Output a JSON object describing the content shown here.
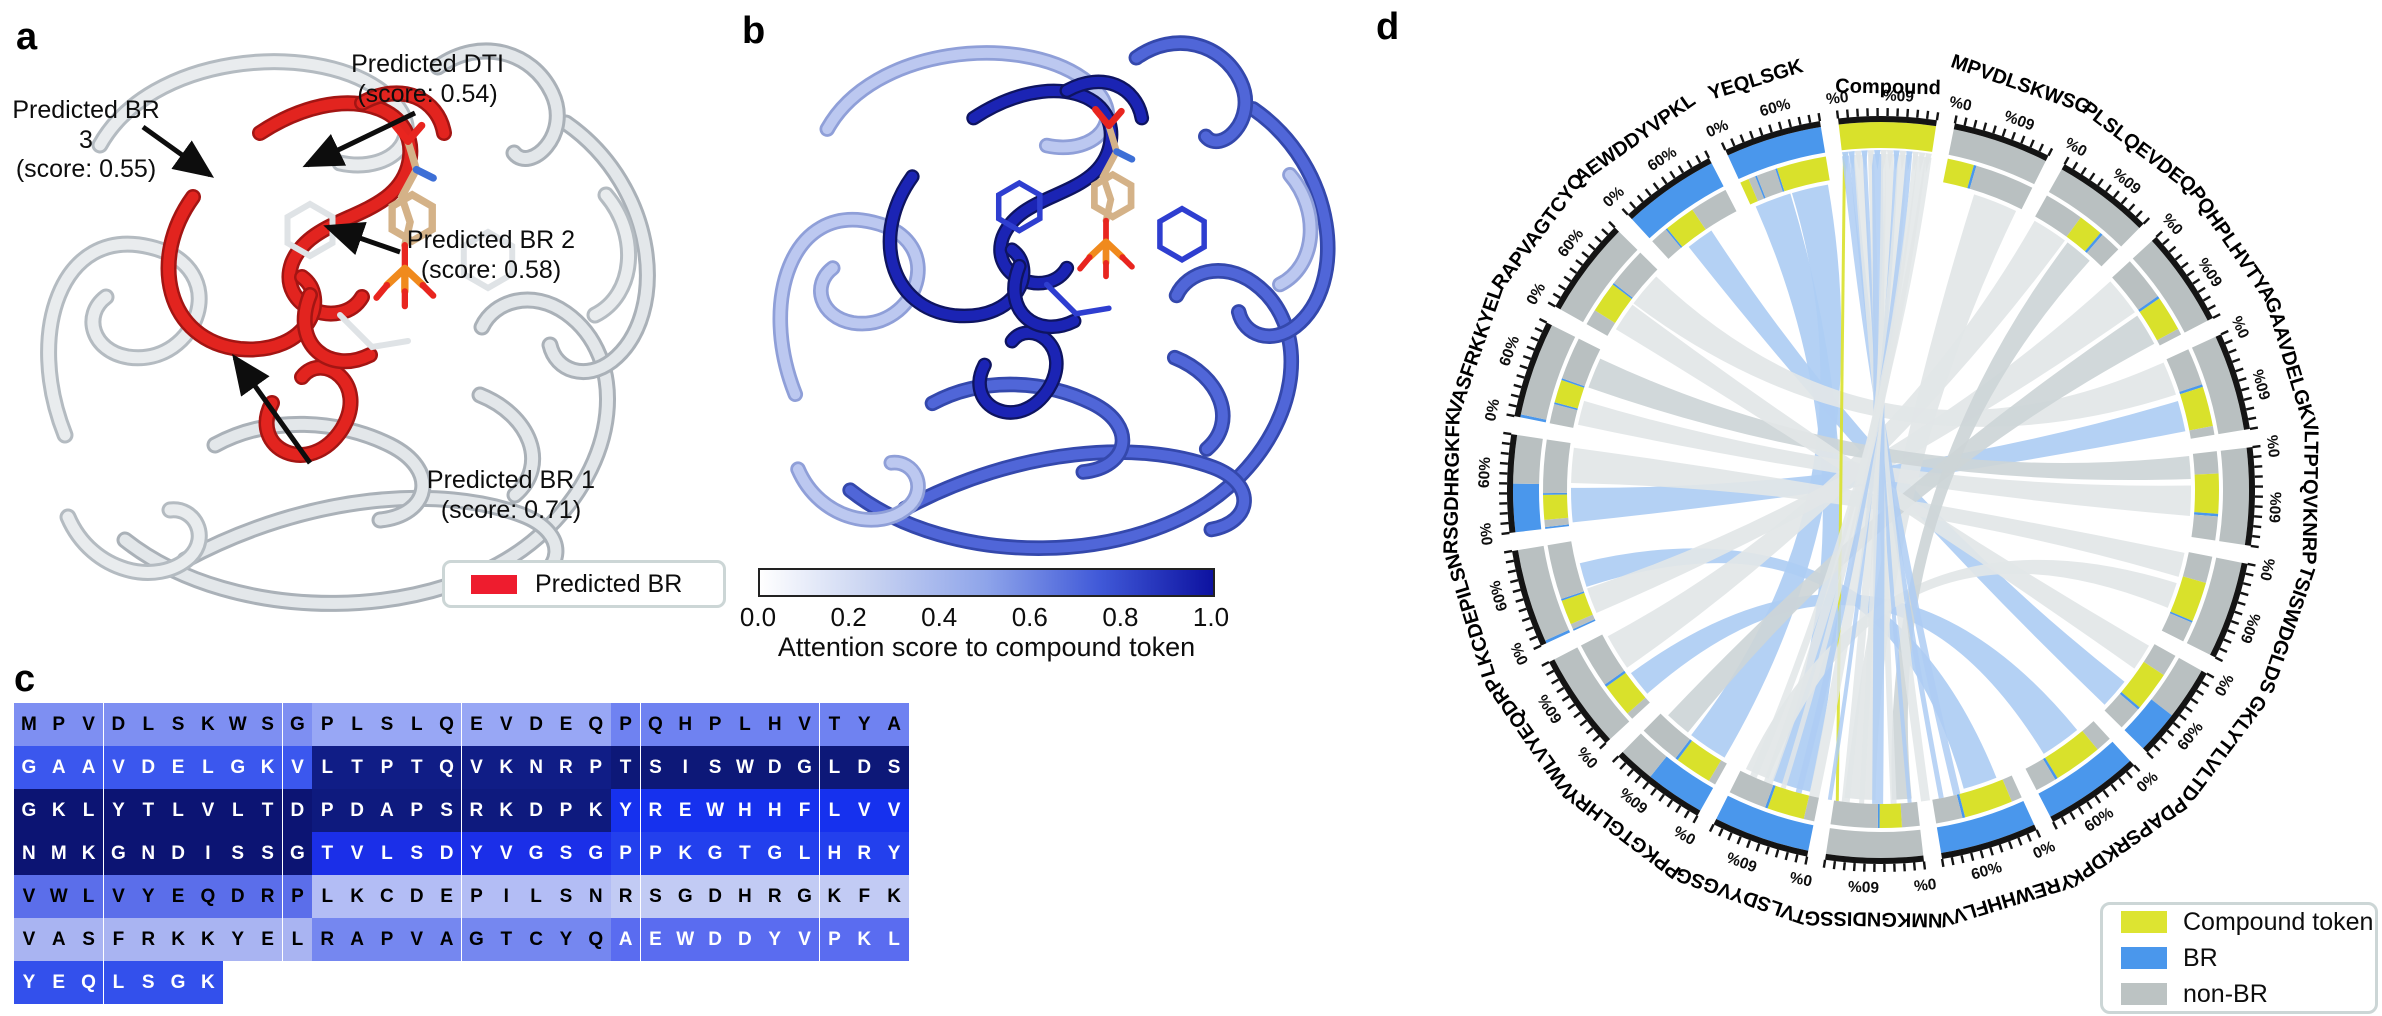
{
  "panel_a": {
    "label": "a",
    "annotations": [
      {
        "name": "predicted-br-3",
        "line1": "Predicted BR 3",
        "line2": "(score: 0.55)"
      },
      {
        "name": "predicted-dti",
        "line1": "Predicted DTI",
        "line2": "(score: 0.54)"
      },
      {
        "name": "predicted-br-2",
        "line1": "Predicted BR 2",
        "line2": "(score: 0.58)"
      },
      {
        "name": "predicted-br-1",
        "line1": "Predicted BR 1",
        "line2": "(score: 0.71)"
      }
    ],
    "legend": {
      "label": "Predicted BR",
      "color": "#ee1c2e"
    }
  },
  "panel_b": {
    "label": "b",
    "colorbar": {
      "ticks": [
        "0.0",
        "0.2",
        "0.4",
        "0.6",
        "0.8",
        "1.0"
      ],
      "title": "Attention score to compound token",
      "gradient": [
        "#ffffff",
        "#c7d2f1",
        "#8ea4ea",
        "#4059d8",
        "#0d12a0"
      ]
    }
  },
  "panel_c": {
    "label": "c",
    "rows": [
      {
        "segments": [
          {
            "seq": "MPVDLSKWSG",
            "bg": "#7e8ff2",
            "fg": "#000000"
          },
          {
            "seq": "PLSLQEVDEQ",
            "bg": "#98a7f5",
            "fg": "#000000"
          },
          {
            "seq": "PQHPLHVTYA",
            "bg": "#6f82f1",
            "fg": "#000000"
          }
        ]
      },
      {
        "segments": [
          {
            "seq": "GAAVDELGKV",
            "bg": "#3b57ee",
            "fg": "#ffffff"
          },
          {
            "seq": "LTPTQVKNRP",
            "bg": "#101d86",
            "fg": "#ffffff"
          },
          {
            "seq": "TSISWDGLDS",
            "bg": "#0d1878",
            "fg": "#ffffff"
          }
        ]
      },
      {
        "segments": [
          {
            "seq": "GKLYTLVLTD",
            "bg": "#0c1473",
            "fg": "#ffffff"
          },
          {
            "seq": "PDAPSRKDPK",
            "bg": "#0e1a7e",
            "fg": "#ffffff"
          },
          {
            "seq": "YREWHHFLVV",
            "bg": "#1631ee",
            "fg": "#ffffff"
          }
        ]
      },
      {
        "segments": [
          {
            "seq": "NMKGNDISSG",
            "bg": "#0c1473",
            "fg": "#ffffff"
          },
          {
            "seq": "TVLSDYVGSG",
            "bg": "#1b2fe8",
            "fg": "#ffffff"
          },
          {
            "seq": "PPKGTGLHRY",
            "bg": "#2340ed",
            "fg": "#ffffff"
          }
        ]
      },
      {
        "segments": [
          {
            "seq": "VWLVYEQDRP",
            "bg": "#5b6eea",
            "fg": "#000000"
          },
          {
            "seq": "LKCDEPILSN",
            "bg": "#b3bdf5",
            "fg": "#000000"
          },
          {
            "seq": "RSGDHRGKFK",
            "bg": "#c2cbf4",
            "fg": "#000000"
          }
        ]
      },
      {
        "segments": [
          {
            "seq": "VASFRKKYEL",
            "bg": "#a9b4f2",
            "fg": "#000000"
          },
          {
            "seq": "RAPVAGTCYQ",
            "bg": "#7587f0",
            "fg": "#000000"
          },
          {
            "seq": "AEWDDYVPKL",
            "bg": "#5a6cf0",
            "fg": "#ffffff"
          }
        ]
      },
      {
        "segments": [
          {
            "seq": "YEQLSGK",
            "bg": "#3350ec",
            "fg": "#ffffff"
          }
        ]
      }
    ]
  },
  "panel_d": {
    "label": "d",
    "tick_labels": [
      "0%",
      "60%"
    ],
    "colors": {
      "compound": "#d9e12b",
      "br": "#4a97ec",
      "nonbr": "#b9c0c1",
      "ribbon_blue": "#aecdf3",
      "ribbon_gray": "#e2e6e7",
      "ribbon_gray2": "#cdd5d7",
      "axis": "#141414"
    },
    "sectors": [
      {
        "name": "Compound",
        "outer": [
          [
            "y",
            1.0
          ]
        ],
        "inner": []
      },
      {
        "name": "MPVDLSKWSG",
        "outer": [
          [
            "g",
            1.0
          ]
        ],
        "inner": [
          [
            "y",
            0.3
          ],
          [
            "b",
            0.03
          ],
          [
            "g",
            0.67
          ]
        ]
      },
      {
        "name": "PLSLQEVDEQ",
        "outer": [
          [
            "g",
            1.0
          ]
        ],
        "inner": [
          [
            "g",
            0.45
          ],
          [
            "y",
            0.28
          ],
          [
            "b",
            0.03
          ],
          [
            "g",
            0.24
          ]
        ]
      },
      {
        "name": "PQHPLHVTYA",
        "outer": [
          [
            "g",
            1.0
          ]
        ],
        "inner": [
          [
            "g",
            0.5
          ],
          [
            "b",
            0.03
          ],
          [
            "y",
            0.4
          ],
          [
            "g",
            0.07
          ]
        ]
      },
      {
        "name": "GAAVDELGKV",
        "outer": [
          [
            "g",
            1.0
          ]
        ],
        "inner": [
          [
            "g",
            0.42
          ],
          [
            "b",
            0.03
          ],
          [
            "y",
            0.45
          ],
          [
            "g",
            0.1
          ]
        ]
      },
      {
        "name": "LTPTQVKNRP",
        "outer": [
          [
            "g",
            1.0
          ]
        ],
        "inner": [
          [
            "g",
            0.25
          ],
          [
            "y",
            0.45
          ],
          [
            "b",
            0.03
          ],
          [
            "g",
            0.27
          ]
        ]
      },
      {
        "name": "TSISWDGLDS",
        "outer": [
          [
            "g",
            1.0
          ]
        ],
        "inner": [
          [
            "g",
            0.3
          ],
          [
            "y",
            0.45
          ],
          [
            "b",
            0.02
          ],
          [
            "g",
            0.23
          ]
        ]
      },
      {
        "name": "GKLYTLVLTD",
        "outer": [
          [
            "g",
            0.55
          ],
          [
            "b",
            0.45
          ]
        ],
        "inner": [
          [
            "g",
            0.25
          ],
          [
            "y",
            0.45
          ],
          [
            "b",
            0.03
          ],
          [
            "g",
            0.27
          ]
        ]
      },
      {
        "name": "PDAPSRKDPK",
        "outer": [
          [
            "b",
            1.0
          ]
        ],
        "inner": [
          [
            "g",
            0.18
          ],
          [
            "y",
            0.55
          ],
          [
            "b",
            0.03
          ],
          [
            "g",
            0.24
          ]
        ]
      },
      {
        "name": "YREWHHFLVV",
        "outer": [
          [
            "b",
            1.0
          ]
        ],
        "inner": [
          [
            "g",
            0.12
          ],
          [
            "y",
            0.55
          ],
          [
            "b",
            0.03
          ],
          [
            "g",
            0.3
          ]
        ]
      },
      {
        "name": "NMKGNDISSG",
        "outer": [
          [
            "g",
            1.0
          ]
        ],
        "inner": [
          [
            "g",
            0.2
          ],
          [
            "y",
            0.25
          ],
          [
            "b",
            0.02
          ],
          [
            "g",
            0.53
          ]
        ]
      },
      {
        "name": "TVLSDYVGSG",
        "outer": [
          [
            "b",
            1.0
          ]
        ],
        "inner": [
          [
            "g",
            0.12
          ],
          [
            "y",
            0.42
          ],
          [
            "b",
            0.03
          ],
          [
            "g",
            0.43
          ]
        ]
      },
      {
        "name": "PPKGTGLHRY",
        "outer": [
          [
            "b",
            0.62
          ],
          [
            "g",
            0.38
          ]
        ],
        "inner": [
          [
            "g",
            0.08
          ],
          [
            "y",
            0.42
          ],
          [
            "b",
            0.03
          ],
          [
            "g",
            0.47
          ]
        ]
      },
      {
        "name": "VWLVYEQDRP",
        "outer": [
          [
            "g",
            1.0
          ]
        ],
        "inner": [
          [
            "g",
            0.08
          ],
          [
            "y",
            0.38
          ],
          [
            "b",
            0.03
          ],
          [
            "g",
            0.51
          ]
        ]
      },
      {
        "name": "LKCDEPILSN",
        "outer": [
          [
            "b",
            0.03
          ],
          [
            "g",
            0.97
          ]
        ],
        "inner": [
          [
            "b",
            0.02
          ],
          [
            "g",
            0.06
          ],
          [
            "y",
            0.28
          ],
          [
            "b",
            0.02
          ],
          [
            "g",
            0.62
          ]
        ]
      },
      {
        "name": "RSGDHRGKFK",
        "outer": [
          [
            "b",
            0.5
          ],
          [
            "g",
            0.5
          ]
        ],
        "inner": [
          [
            "b",
            0.02
          ],
          [
            "g",
            0.08
          ],
          [
            "y",
            0.28
          ],
          [
            "b",
            0.02
          ],
          [
            "g",
            0.6
          ]
        ]
      },
      {
        "name": "VASFRKKYEL",
        "outer": [
          [
            "b",
            0.03
          ],
          [
            "g",
            0.97
          ]
        ],
        "inner": [
          [
            "g",
            0.22
          ],
          [
            "b",
            0.02
          ],
          [
            "y",
            0.26
          ],
          [
            "b",
            0.02
          ],
          [
            "g",
            0.48
          ]
        ]
      },
      {
        "name": "RAPVAGTCYQ",
        "outer": [
          [
            "g",
            1.0
          ]
        ],
        "inner": [
          [
            "g",
            0.18
          ],
          [
            "y",
            0.35
          ],
          [
            "b",
            0.02
          ],
          [
            "g",
            0.45
          ]
        ]
      },
      {
        "name": "AEWDDYVPKL",
        "outer": [
          [
            "b",
            1.0
          ]
        ],
        "inner": [
          [
            "g",
            0.2
          ],
          [
            "b",
            0.02
          ],
          [
            "y",
            0.35
          ],
          [
            "g",
            0.43
          ]
        ]
      },
      {
        "name": "YEQLSGK",
        "outer": [
          [
            "b",
            1.0
          ]
        ],
        "inner": [
          [
            "y",
            0.1
          ],
          [
            "g",
            0.08
          ],
          [
            "b",
            0.02
          ],
          [
            "g",
            0.22
          ],
          [
            "b",
            0.02
          ],
          [
            "y",
            0.56
          ]
        ]
      }
    ],
    "ribbons": [
      {
        "a": 19,
        "a0": 0.05,
        "a1": 0.5,
        "b": 11,
        "b0": 0.12,
        "b1": 0.6,
        "c": "blue"
      },
      {
        "a": 19,
        "a0": 0.52,
        "a1": 0.97,
        "b": 12,
        "b0": 0.06,
        "b1": 0.55,
        "c": "blue"
      },
      {
        "a": 18,
        "a0": 0.28,
        "a1": 0.62,
        "b": 7,
        "b0": 0.58,
        "b1": 0.95,
        "c": "blue"
      },
      {
        "a": 15,
        "a0": 0.04,
        "a1": 0.46,
        "b": 4,
        "b0": 0.52,
        "b1": 0.9,
        "c": "blue"
      },
      {
        "a": 8,
        "a0": 0.22,
        "a1": 0.72,
        "b": 13,
        "b0": 0.1,
        "b1": 0.42,
        "c": "blue"
      },
      {
        "a": 9,
        "a0": 0.18,
        "a1": 0.6,
        "b": 14,
        "b0": 0.42,
        "b1": 0.72,
        "c": "blue"
      },
      {
        "a": 1,
        "a0": 0.4,
        "a1": 0.95,
        "b": 10,
        "b0": 0.5,
        "b1": 0.88,
        "c": "gray"
      },
      {
        "a": 2,
        "a0": 0.02,
        "a1": 0.46,
        "b": 13,
        "b0": 0.5,
        "b1": 0.95,
        "c": "gray"
      },
      {
        "a": 3,
        "a0": 0.02,
        "a1": 0.5,
        "b": 14,
        "b0": 0.08,
        "b1": 0.4,
        "c": "gray"
      },
      {
        "a": 4,
        "a0": 0.02,
        "a1": 0.44,
        "b": 17,
        "b0": 0.5,
        "b1": 0.93,
        "c": "gray"
      },
      {
        "a": 5,
        "a0": 0.02,
        "a1": 0.3,
        "b": 16,
        "b0": 0.52,
        "b1": 0.9,
        "c": "gray2"
      },
      {
        "a": 6,
        "a0": 0.02,
        "a1": 0.32,
        "b": 15,
        "b0": 0.52,
        "b1": 0.95,
        "c": "gray"
      },
      {
        "a": 5,
        "a0": 0.38,
        "a1": 0.75,
        "b": 16,
        "b0": 0.05,
        "b1": 0.35,
        "c": "gray"
      },
      {
        "a": 3,
        "a0": 0.55,
        "a1": 0.95,
        "b": 12,
        "b0": 0.6,
        "b1": 0.92,
        "c": "gray2"
      },
      {
        "a": 6,
        "a0": 0.4,
        "a1": 0.72,
        "b": 11,
        "b0": 0.65,
        "b1": 0.95,
        "c": "gray"
      },
      {
        "a": 17,
        "a0": 0.12,
        "a1": 0.48,
        "b": 7,
        "b0": 0.05,
        "b1": 0.38,
        "c": "gray"
      },
      {
        "a": 2,
        "a0": 0.5,
        "a1": 0.85,
        "b": 10,
        "b0": 0.06,
        "b1": 0.3,
        "c": "gray2"
      }
    ],
    "legend": {
      "items": [
        {
          "label": "Compound token",
          "color": "#dde431"
        },
        {
          "label": "BR",
          "color": "#4a97ec"
        },
        {
          "label": "non-BR",
          "color": "#bcc3c3"
        }
      ]
    }
  }
}
